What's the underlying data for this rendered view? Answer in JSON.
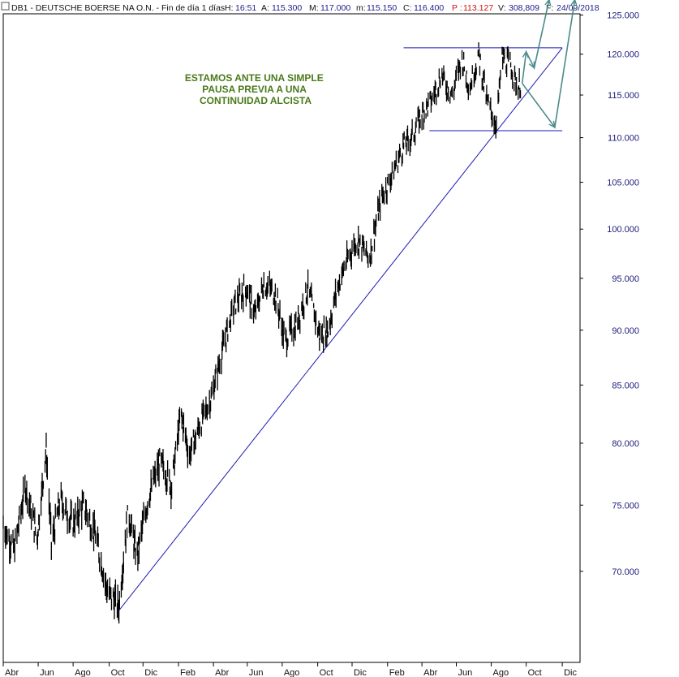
{
  "header": {
    "symbol_info": "DB1 - DEUTSCHE BOERSE NA O.N. - Fin de día 1 días",
    "hora_label": "H:",
    "hora_value": "16:51",
    "apertura_label": "A:",
    "apertura_value": "115.300",
    "maximo_label": "M:",
    "maximo_value": "117.000",
    "minimo_label": "m:",
    "minimo_value": "115.150",
    "cierre_label": "C:",
    "cierre_value": "116.400",
    "p_label": "P :",
    "p_value": "113.127",
    "volumen_label": "V:",
    "volumen_value": "308,809",
    "fecha_label": "F:",
    "fecha_value": "24/09/2018"
  },
  "annotation": {
    "lines": [
      "ESTAMOS ANTE UNA SIMPLE",
      "PAUSA PREVIA A UNA",
      "CONTINUIDAD ALCISTA"
    ],
    "color": "#4a7a1a"
  },
  "chart_data": {
    "type": "line",
    "subtype": "ohlc-bars",
    "y_scale": "log",
    "ylim": [
      65.5,
      126.5
    ],
    "y_ticks": [
      "70.000",
      "75.000",
      "80.000",
      "85.000",
      "90.000",
      "95.000",
      "100.000",
      "105.000",
      "110.000",
      "115.000",
      "120.000",
      "125.000"
    ],
    "y_tick_values": [
      70,
      75,
      80,
      85,
      90,
      95,
      100,
      105,
      110,
      115,
      120,
      125
    ],
    "x_range": [
      "2016-04-01",
      "2019-01-03"
    ],
    "x_ticks": [
      {
        "label": "Abr",
        "date": "2016-04-01"
      },
      {
        "label": "Jun",
        "date": "2016-06-01"
      },
      {
        "label": "Ago",
        "date": "2016-08-01"
      },
      {
        "label": "Oct",
        "date": "2016-10-03"
      },
      {
        "label": "Dic",
        "date": "2016-12-01"
      },
      {
        "label": "Feb",
        "date": "2017-02-01"
      },
      {
        "label": "Abr",
        "date": "2017-04-03"
      },
      {
        "label": "Jun",
        "date": "2017-06-01"
      },
      {
        "label": "Ago",
        "date": "2017-08-01"
      },
      {
        "label": "Oct",
        "date": "2017-10-02"
      },
      {
        "label": "Dic",
        "date": "2017-12-01"
      },
      {
        "label": "Feb",
        "date": "2018-02-01"
      },
      {
        "label": "Abr",
        "date": "2018-04-02"
      },
      {
        "label": "Jun",
        "date": "2018-06-01"
      },
      {
        "label": "Ago",
        "date": "2018-08-01"
      },
      {
        "label": "Oct",
        "date": "2018-10-01"
      },
      {
        "label": "Dic",
        "date": "2018-12-03"
      }
    ],
    "grid": false,
    "series": [
      {
        "color": "#000000",
        "x": [
          "2016-04-01",
          "2016-04-20",
          "2016-05-10",
          "2016-05-30",
          "2016-06-15",
          "2016-06-24",
          "2016-07-10",
          "2016-07-31",
          "2016-08-20",
          "2016-09-10",
          "2016-09-30",
          "2016-10-20",
          "2016-11-05",
          "2016-11-20",
          "2016-12-10",
          "2016-12-31",
          "2017-01-20",
          "2017-02-05",
          "2017-02-20",
          "2017-03-10",
          "2017-03-31",
          "2017-04-20",
          "2017-05-10",
          "2017-05-30",
          "2017-06-15",
          "2017-06-30",
          "2017-07-20",
          "2017-08-05",
          "2017-08-25",
          "2017-09-15",
          "2017-10-05",
          "2017-10-20",
          "2017-11-05",
          "2017-11-20",
          "2017-12-10",
          "2017-12-31",
          "2018-01-20",
          "2018-02-10",
          "2018-02-28",
          "2018-03-15",
          "2018-03-31",
          "2018-04-20",
          "2018-05-05",
          "2018-05-25",
          "2018-06-10",
          "2018-06-25",
          "2018-07-10",
          "2018-07-25",
          "2018-08-10",
          "2018-08-20",
          "2018-09-05",
          "2018-09-15",
          "2018-09-24"
        ],
        "values": [
          73.5,
          71.5,
          76.5,
          72.5,
          79.5,
          72.0,
          75.5,
          73.5,
          75.0,
          72.5,
          68.5,
          67.5,
          74.5,
          71.0,
          75.5,
          78.5,
          76.5,
          82.5,
          79.0,
          81.5,
          84.0,
          88.5,
          92.5,
          94.0,
          91.5,
          94.5,
          93.5,
          89.0,
          90.5,
          94.0,
          89.5,
          90.0,
          94.0,
          96.5,
          99.0,
          97.0,
          103.0,
          106.0,
          109.0,
          110.0,
          112.5,
          114.5,
          117.5,
          115.0,
          119.5,
          116.0,
          120.0,
          114.0,
          111.5,
          119.5,
          118.5,
          116.0,
          116.4
        ]
      }
    ],
    "drawings": [
      {
        "kind": "trendline",
        "color": "#1a1ab4",
        "from": {
          "date": "2016-10-20",
          "value": 67.2
        },
        "to": {
          "date": "2018-12-03",
          "value": 120.8
        }
      },
      {
        "kind": "hline",
        "color": "#1a1ab4",
        "from": {
          "date": "2018-03-01",
          "value": 120.8
        },
        "to": {
          "date": "2018-12-03",
          "value": 120.8
        }
      },
      {
        "kind": "hline",
        "color": "#1a1ab4",
        "from": {
          "date": "2018-04-15",
          "value": 110.8
        },
        "to": {
          "date": "2018-12-03",
          "value": 110.8
        }
      },
      {
        "kind": "arrow",
        "color": "#4a8a8a",
        "points": [
          {
            "date": "2018-09-24",
            "value": 116.4
          },
          {
            "date": "2018-10-01",
            "value": 120.3
          },
          {
            "date": "2018-10-15",
            "value": 118.3
          },
          {
            "date": "2018-11-10",
            "value": 127.0
          }
        ]
      },
      {
        "kind": "arrow",
        "color": "#4a8a8a",
        "points": [
          {
            "date": "2018-09-24",
            "value": 116.4
          },
          {
            "date": "2018-11-20",
            "value": 111.2
          },
          {
            "date": "2018-12-25",
            "value": 127.0
          }
        ]
      }
    ]
  }
}
